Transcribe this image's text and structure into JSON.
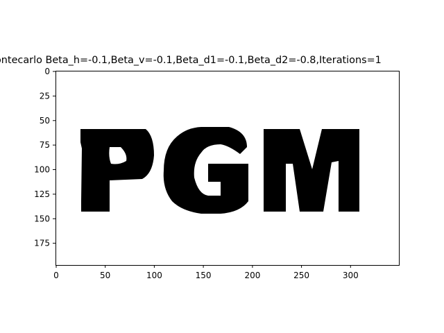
{
  "figure": {
    "title": "ontecarlo Beta_h=-0.1,Beta_v=-0.1,Beta_d1=-0.1,Beta_d2=-0.8,Iterations=1",
    "x_ticks": [
      "0",
      "50",
      "100",
      "150",
      "200",
      "250",
      "300"
    ],
    "y_ticks": [
      "0",
      "25",
      "50",
      "75",
      "100",
      "125",
      "150",
      "175"
    ],
    "image_text": "PGM",
    "colors": {
      "ink": "#000000",
      "background": "#ffffff"
    }
  }
}
